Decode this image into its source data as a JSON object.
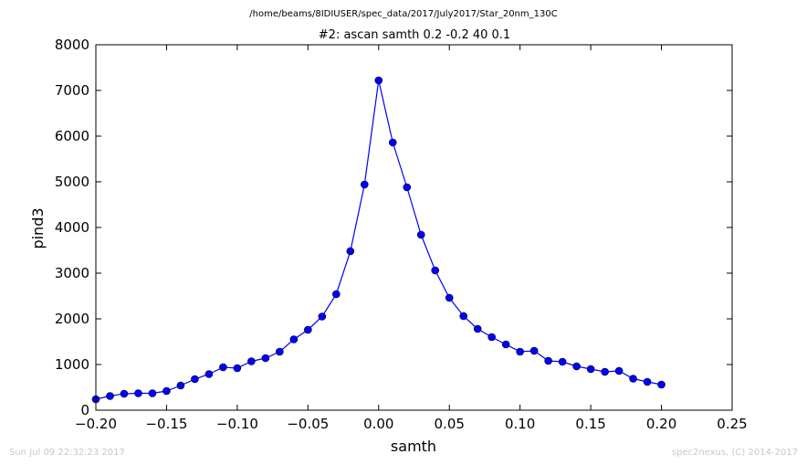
{
  "header": {
    "path": "/home/beams/8IDIUSER/spec_data/2017/July2017/Star_20nm_130C"
  },
  "footer": {
    "timestamp": "Sun Jul 09 22:32:23 2017",
    "credit": "spec2nexus, (C) 2014-2017"
  },
  "colors": {
    "series": "#0000ff"
  },
  "chart_data": {
    "type": "line",
    "title": "#2: ascan  samth 0.2 -0.2  40 0.1",
    "xlabel": "samth",
    "ylabel": "pind3",
    "xlim": [
      -0.2,
      0.25
    ],
    "ylim": [
      0,
      8000
    ],
    "x_ticks": [
      "−0.20",
      "−0.15",
      "−0.10",
      "−0.05",
      "0.00",
      "0.05",
      "0.10",
      "0.15",
      "0.20",
      "0.25"
    ],
    "x_tick_values": [
      -0.2,
      -0.15,
      -0.1,
      -0.05,
      0.0,
      0.05,
      0.1,
      0.15,
      0.2,
      0.25
    ],
    "y_ticks": [
      "0",
      "1000",
      "2000",
      "3000",
      "4000",
      "5000",
      "6000",
      "7000",
      "8000"
    ],
    "y_tick_values": [
      0,
      1000,
      2000,
      3000,
      4000,
      5000,
      6000,
      7000,
      8000
    ],
    "grid": false,
    "series": [
      {
        "x": [
          -0.2,
          -0.19,
          -0.18,
          -0.17,
          -0.16,
          -0.15,
          -0.14,
          -0.13,
          -0.12,
          -0.11,
          -0.1,
          -0.09,
          -0.08,
          -0.07,
          -0.06,
          -0.05,
          -0.04,
          -0.03,
          -0.02,
          -0.01,
          0.0,
          0.01,
          0.02,
          0.03,
          0.04,
          0.05,
          0.06,
          0.07,
          0.08,
          0.09,
          0.1,
          0.11,
          0.12,
          0.13,
          0.14,
          0.15,
          0.16,
          0.17,
          0.18,
          0.19,
          0.2
        ],
        "values": [
          240,
          310,
          360,
          370,
          370,
          420,
          540,
          680,
          790,
          940,
          920,
          1070,
          1140,
          1280,
          1550,
          1760,
          2050,
          2540,
          3480,
          4940,
          7220,
          5860,
          4880,
          3840,
          3060,
          2460,
          2060,
          1780,
          1600,
          1440,
          1280,
          1300,
          1080,
          1060,
          960,
          900,
          840,
          860,
          690,
          620,
          560
        ]
      }
    ]
  }
}
